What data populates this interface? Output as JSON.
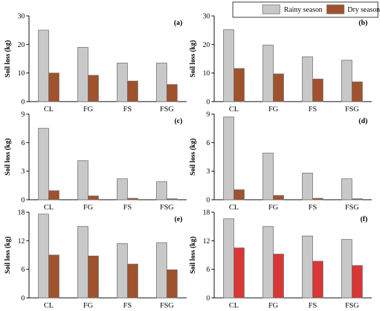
{
  "legend": {
    "items": [
      {
        "label": "Rainy season",
        "color": "#c8c8c8"
      },
      {
        "label": "Dry season",
        "color": "#a0522d"
      }
    ],
    "placement": "top-right"
  },
  "colors": {
    "rainy": "#c8c8c8",
    "dry_brown": "#a0522d",
    "dry_red": "#d93636",
    "bar_stroke": "#6e6e6e",
    "axis": "#000000"
  },
  "chart_data": [
    {
      "type": "bar",
      "panel": "(a)",
      "categories": [
        "CL",
        "FG",
        "FS",
        "FSG"
      ],
      "series": [
        {
          "name": "Rainy season",
          "values": [
            25.0,
            19.0,
            13.5,
            13.5
          ]
        },
        {
          "name": "Dry season",
          "values": [
            10.0,
            9.2,
            7.2,
            6.0
          ]
        }
      ],
      "ylabel": "Soil loss (kg)",
      "ylim": [
        0,
        30
      ],
      "yticks": [
        0,
        10,
        20,
        30
      ],
      "dry_color": "#a0522d"
    },
    {
      "type": "bar",
      "panel": "(b)",
      "categories": [
        "CL",
        "FG",
        "FS",
        "FSG"
      ],
      "series": [
        {
          "name": "Rainy season",
          "values": [
            25.2,
            19.8,
            15.7,
            14.5
          ]
        },
        {
          "name": "Dry season",
          "values": [
            11.6,
            9.7,
            7.9,
            6.9
          ]
        }
      ],
      "ylabel": "Soil loss (kg)",
      "ylim": [
        0,
        30
      ],
      "yticks": [
        0,
        10,
        20,
        30
      ],
      "dry_color": "#a0522d"
    },
    {
      "type": "bar",
      "panel": "(c)",
      "categories": [
        "CL",
        "FG",
        "FS",
        "FSG"
      ],
      "series": [
        {
          "name": "Rainy season",
          "values": [
            7.5,
            4.1,
            2.2,
            1.9
          ]
        },
        {
          "name": "Dry season",
          "values": [
            0.95,
            0.4,
            0.15,
            0.1
          ]
        }
      ],
      "ylabel": "Soil loss (kg)",
      "ylim": [
        0,
        9
      ],
      "yticks": [
        0,
        3,
        6,
        9
      ],
      "dry_color": "#a0522d"
    },
    {
      "type": "bar",
      "panel": "(d)",
      "categories": [
        "CL",
        "FG",
        "FS",
        "FSG"
      ],
      "series": [
        {
          "name": "Rainy season",
          "values": [
            8.7,
            4.9,
            2.8,
            2.2
          ]
        },
        {
          "name": "Dry season",
          "values": [
            1.05,
            0.45,
            0.15,
            0.1
          ]
        }
      ],
      "ylabel": "Soil loss (kg)",
      "ylim": [
        0,
        9
      ],
      "yticks": [
        0,
        3,
        6,
        9
      ],
      "dry_color": "#a0522d"
    },
    {
      "type": "bar",
      "panel": "(e)",
      "categories": [
        "CL",
        "FG",
        "FS",
        "FSG"
      ],
      "series": [
        {
          "name": "Rainy season",
          "values": [
            17.6,
            15.0,
            11.4,
            11.6
          ]
        },
        {
          "name": "Dry season",
          "values": [
            9.0,
            8.8,
            7.1,
            5.9
          ]
        }
      ],
      "ylabel": "Soil loss (kg)",
      "ylim": [
        0,
        18
      ],
      "yticks": [
        0,
        6,
        12,
        18
      ],
      "dry_color": "#a0522d"
    },
    {
      "type": "bar",
      "panel": "(f)",
      "categories": [
        "CL",
        "FG",
        "FS",
        "FSG"
      ],
      "series": [
        {
          "name": "Rainy season",
          "values": [
            16.6,
            15.0,
            13.0,
            12.3
          ]
        },
        {
          "name": "Dry season",
          "values": [
            10.5,
            9.2,
            7.7,
            6.8
          ]
        }
      ],
      "ylabel": "Soil loss (kg)",
      "ylim": [
        0,
        18
      ],
      "yticks": [
        0,
        6,
        12,
        18
      ],
      "dry_color": "#d93636"
    }
  ]
}
